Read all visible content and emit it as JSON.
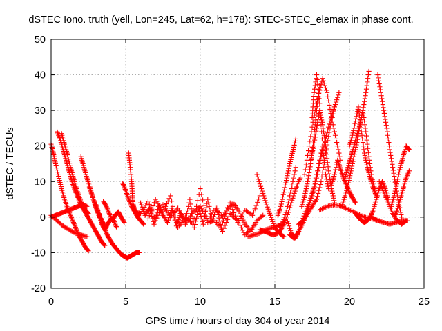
{
  "chart_data": {
    "type": "scatter",
    "title": "dSTEC Iono. truth (yell, Lon=245, Lat=62, h=178): STEC-STEC_elemax in phase cont.",
    "xlabel": "GPS time / hours of day 304 of year 2014",
    "ylabel": "dSTEC  / TECUs",
    "xlim": [
      0,
      25
    ],
    "ylim": [
      -20,
      50
    ],
    "x_ticks": [
      0,
      5,
      10,
      15,
      20,
      25
    ],
    "y_ticks": [
      -20,
      -10,
      0,
      10,
      20,
      30,
      40,
      50
    ],
    "grid": true,
    "marker": "+",
    "color": "#ff0000",
    "series": [
      {
        "x": [
          0.0,
          0.15,
          0.3,
          0.5,
          0.7,
          0.9,
          1.1,
          1.3,
          1.5,
          1.7,
          1.9,
          2.1,
          2.3,
          2.5
        ],
        "y": [
          20.5,
          18,
          15,
          11.5,
          8,
          5,
          2.5,
          0.5,
          -1.5,
          -3.5,
          -5.5,
          -7,
          -8.5,
          -9.5
        ]
      },
      {
        "x": [
          0.4,
          0.6,
          0.8,
          1.0,
          1.2,
          1.4,
          1.6,
          1.8,
          2.0,
          2.2,
          2.4,
          2.6,
          2.8,
          3.0,
          3.2,
          3.4,
          3.6
        ],
        "y": [
          24,
          22,
          19,
          16,
          13,
          10,
          7.5,
          5.5,
          3.5,
          2,
          0.5,
          -1,
          -2.5,
          -4,
          -5.5,
          -7,
          -8
        ]
      },
      {
        "x": [
          0.7,
          0.9,
          1.1,
          1.3,
          1.5,
          1.7,
          1.9,
          2.1,
          2.3,
          2.5
        ],
        "y": [
          23.5,
          20.5,
          17.5,
          14,
          11,
          8,
          5.5,
          3.5,
          2,
          1
        ]
      },
      {
        "x": [
          0.0,
          0.3,
          0.6,
          0.9,
          1.2,
          1.5,
          1.8,
          2.1,
          2.4
        ],
        "y": [
          0,
          0.5,
          1,
          1.5,
          2,
          2.5,
          3,
          3.5,
          3
        ]
      },
      {
        "x": [
          0.0,
          0.4,
          0.8,
          1.2,
          1.6,
          2.0,
          2.4
        ],
        "y": [
          0.5,
          -1,
          -2.5,
          -3.5,
          -4.5,
          -5,
          -5.5
        ]
      },
      {
        "x": [
          2.0,
          2.2,
          2.4,
          2.6,
          2.8,
          3.0,
          3.2,
          3.4,
          3.6
        ],
        "y": [
          17,
          14,
          11,
          8,
          5.5,
          3,
          1,
          -1,
          -2.5
        ]
      },
      {
        "x": [
          2.5,
          2.7,
          2.9,
          3.1,
          3.3,
          3.5,
          3.7,
          3.9,
          4.1,
          4.3,
          4.5,
          4.7,
          4.9,
          5.1,
          5.3,
          5.5,
          5.7,
          5.9
        ],
        "y": [
          10,
          7,
          4,
          1.5,
          -0.5,
          -2.5,
          -4.5,
          -6,
          -7.5,
          -8.5,
          -9.5,
          -10.5,
          -11,
          -11.5,
          -11,
          -10.5,
          -10,
          -10
        ]
      },
      {
        "x": [
          3.0,
          3.2,
          3.4,
          3.6,
          3.8,
          4.0,
          4.2,
          4.4
        ],
        "y": [
          3.5,
          1,
          -2,
          -3.5,
          -2,
          -0.5,
          -1,
          -3
        ]
      },
      {
        "x": [
          3.5,
          3.7,
          3.9,
          4.1,
          4.3,
          4.5,
          4.7,
          4.9
        ],
        "y": [
          4.5,
          3,
          1,
          -1,
          0.5,
          1.5,
          0,
          -1.5
        ]
      },
      {
        "x": [
          4.8,
          5.0,
          5.2,
          5.4,
          5.6,
          5.8,
          6.0,
          6.2
        ],
        "y": [
          9.5,
          7.5,
          5,
          3,
          1.5,
          0,
          -1,
          -2
        ]
      },
      {
        "x": [
          5.2,
          5.3,
          5.4,
          5.45,
          5.5,
          5.6,
          5.7,
          5.8,
          5.9
        ],
        "y": [
          18,
          14,
          10,
          6,
          3.5,
          2,
          1,
          0.5,
          1
        ]
      },
      {
        "x": [
          5.5,
          6.0,
          6.5,
          7.0,
          7.5,
          8.0,
          8.5,
          9.0,
          9.5,
          10.0,
          10.5,
          11.0,
          11.5,
          12.0,
          12.5,
          13.0,
          13.5,
          14.0
        ],
        "y": [
          2,
          1,
          4.5,
          -1,
          3.5,
          0,
          2.5,
          -2,
          1.5,
          3,
          -1,
          2.5,
          0,
          4,
          -1.5,
          2,
          0.5,
          6
        ]
      },
      {
        "x": [
          6.0,
          6.3,
          6.6,
          6.9,
          7.2,
          7.5,
          7.8,
          8.1,
          8.4,
          8.7,
          9.0,
          9.3,
          9.6,
          9.9,
          10.2,
          10.5,
          10.8,
          11.1,
          11.4,
          11.7
        ],
        "y": [
          4,
          0.5,
          2.5,
          -2,
          3,
          0.5,
          -1.5,
          2.5,
          -2.5,
          1,
          -1,
          5,
          -3,
          2.5,
          -2,
          5,
          -1,
          2.5,
          -3,
          1
        ]
      },
      {
        "x": [
          6.5,
          7.0,
          7.5,
          8.0,
          8.5,
          9.0,
          9.5,
          10.0,
          10.5,
          11.0,
          11.5,
          12.0,
          12.5,
          13.0,
          13.5
        ],
        "y": [
          -0.5,
          5,
          1.5,
          6,
          -3,
          0,
          -2,
          8,
          -1.5,
          -1,
          -4,
          1,
          -1,
          -5,
          -3
        ]
      },
      {
        "x": [
          11.8,
          12.2,
          12.6,
          13.0,
          13.4,
          13.8,
          14.2
        ],
        "y": [
          2,
          4,
          1.5,
          -2,
          -4,
          -1,
          0.5
        ]
      },
      {
        "x": [
          13.8,
          14.1,
          14.4,
          14.7,
          15.0,
          15.3,
          15.6
        ],
        "y": [
          12,
          8,
          4,
          0.5,
          -3,
          -4.5,
          -5.5
        ]
      },
      {
        "x": [
          13.2,
          13.6,
          14.0,
          14.4,
          14.8,
          15.2,
          15.5,
          15.8,
          16.1,
          16.4
        ],
        "y": [
          -5.5,
          -5,
          -4.5,
          -3.5,
          -3,
          -2.5,
          -2,
          2,
          8,
          14
        ]
      },
      {
        "x": [
          14.0,
          14.3,
          14.6,
          14.9,
          15.2,
          15.5,
          15.8,
          16.1,
          16.4,
          16.7
        ],
        "y": [
          -3.5,
          -4,
          -4.5,
          -5,
          -4.5,
          -3,
          0,
          4,
          8,
          11
        ]
      },
      {
        "x": [
          15.2,
          15.4,
          15.6,
          15.8,
          16.0,
          16.2,
          16.4
        ],
        "y": [
          0.5,
          3,
          7,
          11,
          15,
          18.5,
          22
        ]
      },
      {
        "x": [
          15.8,
          16.1,
          16.4,
          16.7,
          17.0,
          17.3,
          17.6,
          17.9,
          18.2
        ],
        "y": [
          -0.5,
          -4.5,
          -6,
          -3,
          1,
          4,
          8,
          14,
          20
        ]
      },
      {
        "x": [
          16.0,
          16.3,
          16.6,
          16.9,
          17.2,
          17.5,
          17.8,
          18.1,
          18.4,
          18.7,
          19.0,
          19.3
        ],
        "y": [
          -5,
          -6,
          -4,
          -1.5,
          2,
          6,
          11,
          17,
          22,
          27,
          31,
          35
        ]
      },
      {
        "x": [
          16.6,
          16.9,
          17.2,
          17.5,
          17.8,
          18.1,
          18.4,
          18.7,
          19.0
        ],
        "y": [
          -2,
          -1,
          1,
          3,
          5,
          10,
          18,
          25,
          31
        ]
      },
      {
        "x": [
          16.8,
          17.0,
          17.2,
          17.4,
          17.6,
          17.8,
          18.0
        ],
        "y": [
          3,
          6,
          10,
          15,
          22,
          30,
          37
        ]
      },
      {
        "x": [
          17.0,
          17.3,
          17.6,
          17.9,
          18.2,
          18.5,
          18.8,
          19.1,
          19.4
        ],
        "y": [
          12,
          20,
          28,
          34,
          39,
          35,
          28,
          22,
          16
        ]
      },
      {
        "x": [
          17.5,
          17.6,
          17.8,
          18.0,
          18.2,
          18.4,
          18.6
        ],
        "y": [
          28,
          34,
          40,
          32,
          20,
          12,
          8
        ]
      },
      {
        "x": [
          17.4,
          17.6,
          17.8,
          18.0,
          18.2,
          18.4,
          18.6,
          18.8,
          19.0
        ],
        "y": [
          16,
          20,
          25,
          30,
          26,
          20,
          13,
          8,
          4
        ]
      },
      {
        "x": [
          18.0,
          18.5,
          19.0,
          19.5,
          20.0,
          20.5,
          21.0,
          21.5,
          22.0
        ],
        "y": [
          2,
          3,
          3.5,
          3,
          2,
          1,
          0,
          -0.5,
          -1
        ]
      },
      {
        "x": [
          18.8,
          19.0,
          19.2,
          19.4,
          19.6,
          19.8,
          20.0,
          20.2,
          20.4
        ],
        "y": [
          9,
          12,
          16,
          13.5,
          11,
          9,
          7,
          5.5,
          4
        ]
      },
      {
        "x": [
          19.5,
          19.7,
          19.9,
          20.1,
          20.3,
          20.5,
          20.7,
          20.9,
          21.1,
          21.3
        ],
        "y": [
          3,
          6,
          9,
          13,
          17,
          21,
          26,
          30,
          35,
          41
        ]
      },
      {
        "x": [
          19.7,
          19.9,
          20.1,
          20.3,
          20.5,
          20.7,
          20.9,
          21.1,
          21.3,
          21.5,
          21.7
        ],
        "y": [
          11,
          14,
          17,
          20,
          23,
          26,
          30,
          24,
          17,
          11,
          8
        ]
      },
      {
        "x": [
          20.0,
          20.2,
          20.4,
          20.6,
          20.8,
          21.0,
          21.2,
          21.4,
          21.6,
          21.8
        ],
        "y": [
          20,
          23,
          27,
          31,
          24,
          18,
          14,
          11,
          8,
          6
        ]
      },
      {
        "x": [
          20.4,
          20.6,
          20.8,
          21.0,
          21.2,
          21.4,
          21.6,
          21.8,
          22.0,
          22.2,
          22.4,
          22.6
        ],
        "y": [
          1,
          0,
          -1,
          -1.5,
          -1,
          0,
          2,
          5,
          8,
          10,
          8,
          5
        ]
      },
      {
        "x": [
          21.9,
          22.1,
          22.3,
          22.5,
          22.7,
          22.9,
          23.1,
          23.3,
          23.5
        ],
        "y": [
          40,
          35,
          30,
          25,
          19,
          14,
          9,
          4,
          0
        ]
      },
      {
        "x": [
          22.0,
          22.3,
          22.6,
          22.9,
          23.2,
          23.5,
          23.8
        ],
        "y": [
          10,
          7,
          4,
          1,
          -1,
          -2,
          -1
        ]
      },
      {
        "x": [
          21.5,
          21.9,
          22.3,
          22.7,
          23.1,
          23.5,
          23.9
        ],
        "y": [
          0,
          -1,
          -1.5,
          -2,
          -1.5,
          -1,
          -1
        ]
      },
      {
        "x": [
          22.8,
          23.0,
          23.2,
          23.4,
          23.6,
          23.8,
          24.0
        ],
        "y": [
          3,
          6,
          10,
          14,
          17,
          20,
          19
        ]
      },
      {
        "x": [
          23.0,
          23.2,
          23.4,
          23.6,
          23.8,
          24.0
        ],
        "y": [
          0,
          2,
          5,
          8,
          11,
          13
        ]
      }
    ]
  }
}
